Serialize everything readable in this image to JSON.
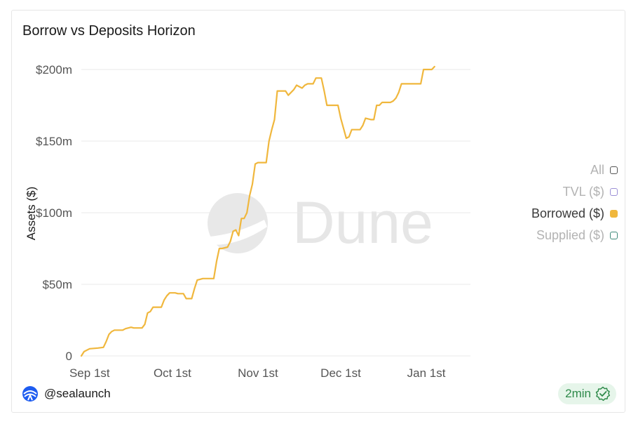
{
  "chart_data": {
    "type": "line",
    "title": "Borrow vs Deposits Horizon",
    "ylabel": "Assets ($)",
    "xlabel": "",
    "ylim": [
      0,
      200
    ],
    "y_ticks": [
      {
        "value": 0,
        "label": "0"
      },
      {
        "value": 50,
        "label": "$50m"
      },
      {
        "value": 100,
        "label": "$100m"
      },
      {
        "value": 150,
        "label": "$150m"
      },
      {
        "value": 200,
        "label": "$200m"
      }
    ],
    "x_range": [
      "2023-08-29",
      "2024-01-17"
    ],
    "x_ticks": [
      {
        "date": "2023-09-01",
        "label": "Sep 1st"
      },
      {
        "date": "2023-10-01",
        "label": "Oct 1st"
      },
      {
        "date": "2023-11-01",
        "label": "Nov 1st"
      },
      {
        "date": "2023-12-01",
        "label": "Dec 1st"
      },
      {
        "date": "2024-01-01",
        "label": "Jan 1st"
      }
    ],
    "grid": true,
    "legend_placement": "right",
    "legend": [
      {
        "label": "All",
        "color": "#555555",
        "active": false
      },
      {
        "label": "TVL ($)",
        "color": "#9b8fd6",
        "active": false
      },
      {
        "label": "Borrowed ($)",
        "color": "#f0b73d",
        "active": true
      },
      {
        "label": "Supplied ($)",
        "color": "#3f8a7a",
        "active": false
      }
    ],
    "series": [
      {
        "name": "Borrowed ($)",
        "color": "#f0b73d",
        "points": [
          [
            "2023-08-29",
            0
          ],
          [
            "2023-08-30",
            3
          ],
          [
            "2023-09-01",
            5
          ],
          [
            "2023-09-04",
            5.5
          ],
          [
            "2023-09-06",
            6
          ],
          [
            "2023-09-07",
            10
          ],
          [
            "2023-09-08",
            15
          ],
          [
            "2023-09-09",
            17
          ],
          [
            "2023-09-10",
            18
          ],
          [
            "2023-09-13",
            18
          ],
          [
            "2023-09-14",
            19
          ],
          [
            "2023-09-16",
            20
          ],
          [
            "2023-09-17",
            19.5
          ],
          [
            "2023-09-20",
            19.5
          ],
          [
            "2023-09-21",
            22
          ],
          [
            "2023-09-22",
            30
          ],
          [
            "2023-09-23",
            31
          ],
          [
            "2023-09-24",
            34
          ],
          [
            "2023-09-27",
            34
          ],
          [
            "2023-09-28",
            39
          ],
          [
            "2023-09-29",
            42
          ],
          [
            "2023-09-30",
            44
          ],
          [
            "2023-10-02",
            44
          ],
          [
            "2023-10-03",
            43.5
          ],
          [
            "2023-10-05",
            43.5
          ],
          [
            "2023-10-06",
            40
          ],
          [
            "2023-10-08",
            40
          ],
          [
            "2023-10-09",
            47
          ],
          [
            "2023-10-10",
            53
          ],
          [
            "2023-10-11",
            53.5
          ],
          [
            "2023-10-12",
            54
          ],
          [
            "2023-10-16",
            54
          ],
          [
            "2023-10-17",
            66
          ],
          [
            "2023-10-18",
            75
          ],
          [
            "2023-10-19",
            75
          ],
          [
            "2023-10-21",
            76
          ],
          [
            "2023-10-22",
            80
          ],
          [
            "2023-10-23",
            87
          ],
          [
            "2023-10-24",
            88
          ],
          [
            "2023-10-25",
            84
          ],
          [
            "2023-10-26",
            96
          ],
          [
            "2023-10-27",
            96
          ],
          [
            "2023-10-28",
            100
          ],
          [
            "2023-10-29",
            112
          ],
          [
            "2023-10-30",
            120
          ],
          [
            "2023-10-31",
            134
          ],
          [
            "2023-11-01",
            135
          ],
          [
            "2023-11-03",
            135
          ],
          [
            "2023-11-04",
            135
          ],
          [
            "2023-11-05",
            150
          ],
          [
            "2023-11-06",
            158
          ],
          [
            "2023-11-07",
            165
          ],
          [
            "2023-11-08",
            185
          ],
          [
            "2023-11-10",
            185
          ],
          [
            "2023-11-11",
            185
          ],
          [
            "2023-11-12",
            182
          ],
          [
            "2023-11-14",
            186
          ],
          [
            "2023-11-15",
            189
          ],
          [
            "2023-11-16",
            188
          ],
          [
            "2023-11-17",
            187
          ],
          [
            "2023-11-18",
            189
          ],
          [
            "2023-11-19",
            190
          ],
          [
            "2023-11-21",
            190
          ],
          [
            "2023-11-22",
            194
          ],
          [
            "2023-11-24",
            194
          ],
          [
            "2023-11-25",
            185
          ],
          [
            "2023-11-26",
            175
          ],
          [
            "2023-11-29",
            175
          ],
          [
            "2023-11-30",
            175
          ],
          [
            "2023-12-01",
            166
          ],
          [
            "2023-12-03",
            152
          ],
          [
            "2023-12-04",
            153
          ],
          [
            "2023-12-05",
            158
          ],
          [
            "2023-12-07",
            158
          ],
          [
            "2023-12-08",
            158
          ],
          [
            "2023-12-09",
            161
          ],
          [
            "2023-12-10",
            166
          ],
          [
            "2023-12-12",
            165
          ],
          [
            "2023-12-13",
            165
          ],
          [
            "2023-12-14",
            175
          ],
          [
            "2023-12-15",
            175
          ],
          [
            "2023-12-16",
            177
          ],
          [
            "2023-12-19",
            177
          ],
          [
            "2023-12-20",
            178
          ],
          [
            "2023-12-21",
            180
          ],
          [
            "2023-12-22",
            184
          ],
          [
            "2023-12-23",
            190
          ],
          [
            "2023-12-25",
            190
          ],
          [
            "2023-12-26",
            190
          ],
          [
            "2023-12-29",
            190
          ],
          [
            "2023-12-30",
            190
          ],
          [
            "2023-12-31",
            200
          ],
          [
            "2024-01-01",
            200
          ],
          [
            "2024-01-03",
            200
          ],
          [
            "2024-01-04",
            202
          ]
        ]
      }
    ]
  },
  "watermark_text": "Dune",
  "footer": {
    "handle": "@sealaunch",
    "refresh_badge": "2min"
  },
  "colors": {
    "grid": "#e8e8e8",
    "axis_text": "#555555",
    "badge_bg": "#e6f5ea",
    "badge_text": "#2e8a4a",
    "logo": "#1e5cf0"
  }
}
